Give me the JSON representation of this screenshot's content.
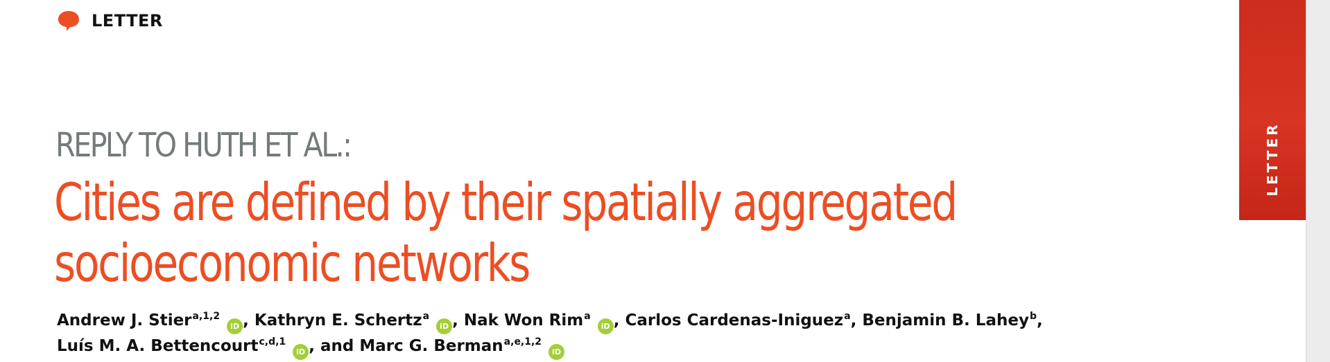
{
  "header": {
    "label": "LETTER",
    "icon": "speech-bubble-icon"
  },
  "side_tab": {
    "label": "LETTER"
  },
  "kicker": "REPLY TO HUTH ET AL.:",
  "title": {
    "line1": "Cities are defined by their spatially aggregated",
    "line2": "socioeconomic networks"
  },
  "authors": [
    {
      "name": "Andrew J. Stier",
      "aff": "a,1,2",
      "orcid": true
    },
    {
      "name": "Kathryn E. Schertz",
      "aff": "a",
      "orcid": true
    },
    {
      "name": "Nak Won Rim",
      "aff": "a",
      "orcid": true
    },
    {
      "name": "Carlos Cardenas-Iniguez",
      "aff": "a",
      "orcid": false
    },
    {
      "name": "Benjamin B. Lahey",
      "aff": "b",
      "orcid": false
    },
    {
      "name": "Luís M. A. Bettencourt",
      "aff": "c,d,1",
      "orcid": true
    },
    {
      "name": "Marc G. Berman",
      "aff": "a,e,1,2",
      "orcid": true,
      "prefix": "and "
    }
  ],
  "orcid_badge": "iD",
  "colors": {
    "accent": "#ec4e24",
    "side_tab": "#d2301f",
    "kicker": "#747a7b",
    "orcid": "#a5cd39"
  }
}
